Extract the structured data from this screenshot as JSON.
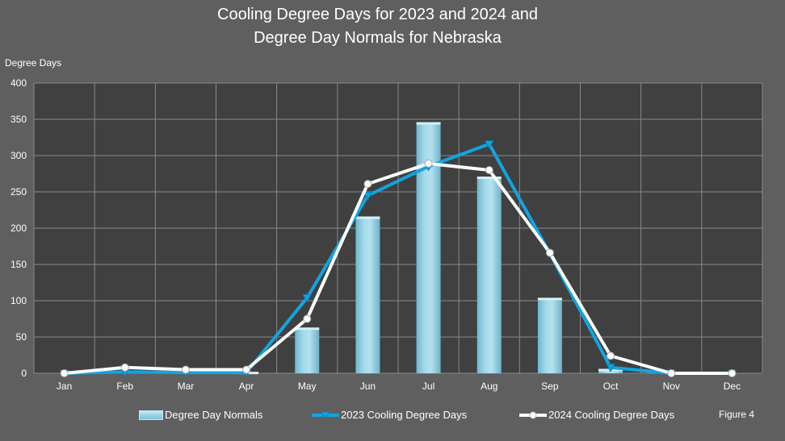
{
  "title_lines": [
    "Cooling Degree Days for 2023 and 2024 and",
    "Degree Day Normals for Nebraska"
  ],
  "figure_label": "Figure 4",
  "colors": {
    "background": "#5f5f5f",
    "plot_area": "#404040",
    "grid": "#8a8a8a",
    "normals_bar": "#94d2e6",
    "series_2023": "#10a5e2",
    "series_2024": "#ffffff"
  },
  "chart_data": {
    "type": "bar",
    "title": "Cooling Degree Days for 2023 and 2024 and Degree Day Normals for Nebraska",
    "ylabel": "Degree Days",
    "xlabel": "",
    "ylim": [
      0,
      400
    ],
    "yticks": [
      0,
      50,
      100,
      150,
      200,
      250,
      300,
      350,
      400
    ],
    "grid": true,
    "legend_position": "bottom",
    "categories": [
      "Jan",
      "Feb",
      "Mar",
      "Apr",
      "May",
      "Jun",
      "Jul",
      "Aug",
      "Sep",
      "Oct",
      "Nov",
      "Dec"
    ],
    "series": [
      {
        "name": "Degree Day Normals",
        "type": "bar",
        "values": [
          0,
          0,
          0,
          1,
          62,
          215,
          345,
          270,
          103,
          5,
          0,
          0
        ]
      },
      {
        "name": "2023 Cooling Degree Days",
        "type": "line",
        "marker": "triangle-down",
        "values": [
          0,
          2,
          1,
          1,
          104,
          245,
          285,
          316,
          165,
          8,
          0,
          0
        ]
      },
      {
        "name": "2024 Cooling Degree Days",
        "type": "line",
        "marker": "circle",
        "values": [
          0,
          8,
          5,
          5,
          75,
          261,
          289,
          280,
          166,
          24,
          0,
          0
        ]
      }
    ]
  }
}
